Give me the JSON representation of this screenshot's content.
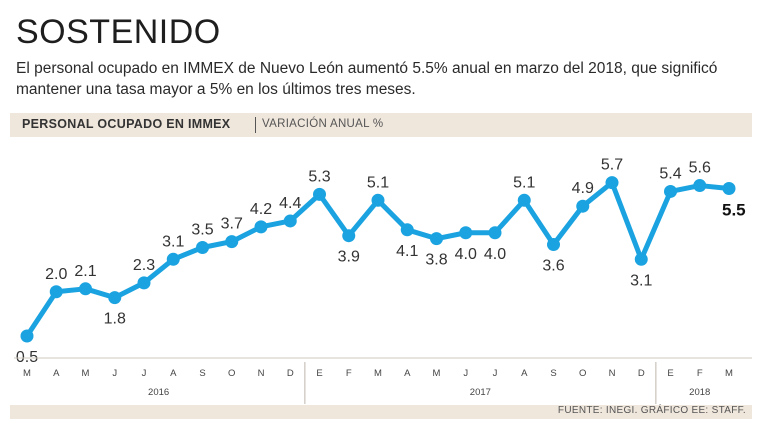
{
  "header": {
    "title": "SOSTENIDO",
    "lede": "El personal ocupado en IMMEX de Nuevo León aumentó 5.5% anual en marzo del 2018, que significó mantener una tasa mayor a 5% en los últimos tres meses."
  },
  "band": {
    "title": "PERSONAL OCUPADO EN IMMEX",
    "subtitle": "VARIACIÓN ANUAL %"
  },
  "footer": {
    "source": "FUENTE: INEGI. GRÁFICO EE: STAFF."
  },
  "colors": {
    "line": "#1aa3e0",
    "band": "#efe6dc",
    "text": "#222222"
  },
  "chart_data": {
    "type": "line",
    "title": "PERSONAL OCUPADO EN IMMEX",
    "ylabel": "VARIACIÓN ANUAL %",
    "xlabel": "",
    "ylim": [
      0,
      6
    ],
    "grid": false,
    "categories": [
      "M",
      "A",
      "M",
      "J",
      "J",
      "A",
      "S",
      "O",
      "N",
      "D",
      "E",
      "F",
      "M",
      "A",
      "M",
      "J",
      "J",
      "A",
      "S",
      "O",
      "N",
      "D",
      "E",
      "F",
      "M"
    ],
    "labels": [
      "0.5",
      "2.0",
      "2.1",
      "1.8",
      "2.3",
      "3.1",
      "3.5",
      "3.7",
      "4.2",
      "4.4",
      "5.3",
      "3.9",
      "5.1",
      "4.1",
      "3.8",
      "4.0",
      "4.0",
      "5.1",
      "3.6",
      "4.9",
      "5.7",
      "3.1",
      "5.4",
      "5.6",
      "5.5"
    ],
    "values": [
      0.5,
      2.0,
      2.1,
      1.8,
      2.3,
      3.1,
      3.5,
      3.7,
      4.2,
      4.4,
      5.3,
      3.9,
      5.1,
      4.1,
      3.8,
      4.0,
      4.0,
      5.1,
      3.6,
      4.9,
      5.7,
      3.1,
      5.4,
      5.6,
      5.5
    ],
    "label_positions": [
      "below",
      "above",
      "above",
      "below",
      "above",
      "above",
      "above",
      "above",
      "above",
      "above",
      "above",
      "below",
      "above",
      "below",
      "below",
      "below",
      "below",
      "above",
      "below",
      "above",
      "above",
      "below",
      "above",
      "above",
      "right"
    ],
    "years": [
      {
        "label": "2016",
        "start": 0,
        "end": 9
      },
      {
        "label": "2017",
        "start": 10,
        "end": 21
      },
      {
        "label": "2018",
        "start": 22,
        "end": 24
      }
    ],
    "highlight_last": true
  }
}
